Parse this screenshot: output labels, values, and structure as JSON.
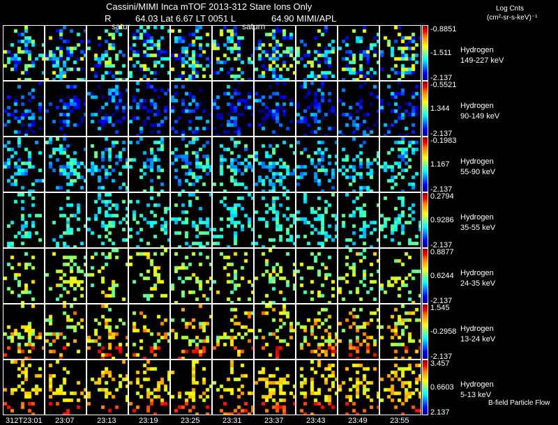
{
  "header": {
    "line1": "Cassini/MIMI Inca mTOF  2013-312    Stare    Ions Only",
    "line2_r": "R",
    "line2_rest": "64.03 Lat 6.67 LT 0051 L",
    "line2_l": "64.90  MIMI/APL",
    "saturn_label_1": "satur",
    "saturn_label_2": "saturn"
  },
  "units": {
    "line1": "Log Cnts",
    "line2": "(cm²-sr-s-keV)⁻¹"
  },
  "footer_note": "B-field Particle Flow",
  "chart_data": {
    "type": "heatmap",
    "title": "Cassini/MIMI Inca mTOF 2013-312 Stare Ions Only",
    "x_ticks": [
      "312T23:01",
      "23:07",
      "23:13",
      "23:19",
      "23:25",
      "23:31",
      "23:37",
      "23:43",
      "23:49",
      "23:55"
    ],
    "rows": [
      {
        "species": "Hydrogen",
        "energy": "149-227 keV",
        "max": "-0.8851",
        "mid": "-1.511",
        "min": "-2.137"
      },
      {
        "species": "Hydrogen",
        "energy": "90-149 keV",
        "max": "-0.5521",
        "mid": "1.344",
        "min": "-2.137"
      },
      {
        "species": "Hydrogen",
        "energy": "55-90 keV",
        "max": "-0.1983",
        "mid": "1.167",
        "min": "-2.137"
      },
      {
        "species": "Hydrogen",
        "energy": "35-55 keV",
        "max": "0.2794",
        "mid": "0.9286",
        "min": "-2.137"
      },
      {
        "species": "Hydrogen",
        "energy": "24-35 keV",
        "max": "0.8877",
        "mid": "0.6244",
        "min": "-2.137"
      },
      {
        "species": "Hydrogen",
        "energy": "13-24 keV",
        "max": "1.545",
        "mid": "-0.2958",
        "min": "-2.137"
      },
      {
        "species": "Hydrogen",
        "energy": "5-13 keV",
        "max": "3.457",
        "mid": "0.6603",
        "min": "2.137"
      }
    ]
  }
}
